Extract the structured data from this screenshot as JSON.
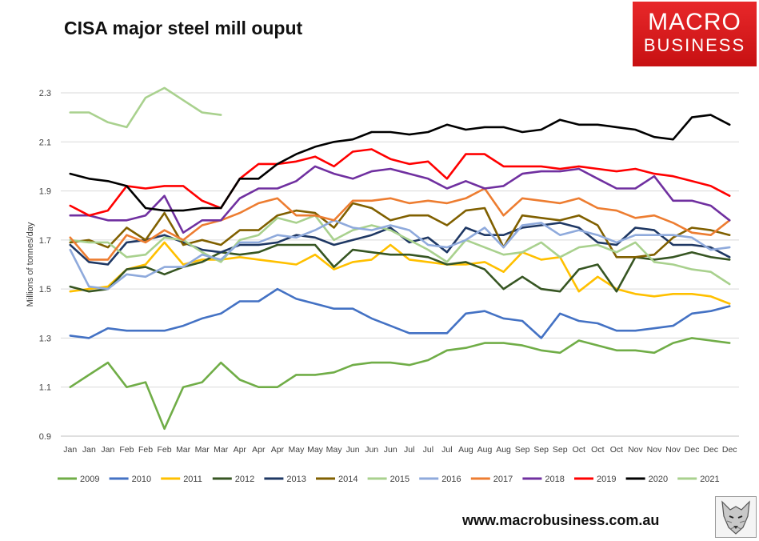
{
  "chart_data": {
    "type": "line",
    "title": "CISA major steel mill ouput",
    "xlabel": "",
    "ylabel": "Millions of tonnes/day",
    "ylim": [
      0.9,
      2.3
    ],
    "yticks": [
      0.9,
      1.1,
      1.3,
      1.5,
      1.7,
      1.9,
      2.1,
      2.3
    ],
    "grid": "horizontal",
    "legend": "bottom",
    "categories": [
      "Jan",
      "Jan",
      "Jan",
      "Feb",
      "Feb",
      "Feb",
      "Mar",
      "Mar",
      "Mar",
      "Apr",
      "Apr",
      "Apr",
      "May",
      "May",
      "May",
      "Jun",
      "Jun",
      "Jun",
      "Jul",
      "Jul",
      "Jul",
      "Aug",
      "Aug",
      "Aug",
      "Sep",
      "Sep",
      "Sep",
      "Oct",
      "Oct",
      "Oct",
      "Nov",
      "Nov",
      "Nov",
      "Dec",
      "Dec",
      "Dec"
    ],
    "series": [
      {
        "name": "2009",
        "color": "#70ad47",
        "values": [
          1.1,
          1.15,
          1.2,
          1.1,
          1.12,
          0.93,
          1.1,
          1.12,
          1.2,
          1.13,
          1.1,
          1.1,
          1.15,
          1.15,
          1.16,
          1.19,
          1.2,
          1.2,
          1.19,
          1.21,
          1.25,
          1.26,
          1.28,
          1.28,
          1.27,
          1.25,
          1.24,
          1.29,
          1.27,
          1.25,
          1.25,
          1.24,
          1.28,
          1.3,
          1.29,
          1.28
        ]
      },
      {
        "name": "2010",
        "color": "#4472c4",
        "values": [
          1.31,
          1.3,
          1.34,
          1.33,
          1.33,
          1.33,
          1.35,
          1.38,
          1.4,
          1.45,
          1.45,
          1.5,
          1.46,
          1.44,
          1.42,
          1.42,
          1.38,
          1.35,
          1.32,
          1.32,
          1.32,
          1.4,
          1.41,
          1.38,
          1.37,
          1.3,
          1.4,
          1.37,
          1.36,
          1.33,
          1.33,
          1.34,
          1.35,
          1.4,
          1.41,
          1.43
        ]
      },
      {
        "name": "2011",
        "color": "#ffc000",
        "values": [
          1.49,
          1.5,
          1.51,
          1.58,
          1.6,
          1.69,
          1.6,
          1.62,
          1.62,
          1.63,
          1.62,
          1.61,
          1.6,
          1.64,
          1.58,
          1.61,
          1.62,
          1.68,
          1.62,
          1.61,
          1.6,
          1.6,
          1.61,
          1.57,
          1.65,
          1.62,
          1.63,
          1.49,
          1.55,
          1.5,
          1.48,
          1.47,
          1.48,
          1.48,
          1.47,
          1.44
        ]
      },
      {
        "name": "2012",
        "color": "#375623",
        "values": [
          1.51,
          1.49,
          1.5,
          1.58,
          1.59,
          1.56,
          1.59,
          1.61,
          1.65,
          1.64,
          1.65,
          1.68,
          1.68,
          1.68,
          1.59,
          1.66,
          1.65,
          1.64,
          1.64,
          1.63,
          1.6,
          1.61,
          1.58,
          1.5,
          1.55,
          1.5,
          1.49,
          1.58,
          1.6,
          1.49,
          1.63,
          1.62,
          1.63,
          1.65,
          1.63,
          1.62
        ]
      },
      {
        "name": "2013",
        "color": "#1f3864",
        "values": [
          1.68,
          1.61,
          1.6,
          1.69,
          1.7,
          1.72,
          1.69,
          1.66,
          1.65,
          1.68,
          1.68,
          1.69,
          1.72,
          1.71,
          1.68,
          1.7,
          1.72,
          1.75,
          1.69,
          1.71,
          1.65,
          1.75,
          1.72,
          1.72,
          1.75,
          1.76,
          1.77,
          1.75,
          1.69,
          1.68,
          1.75,
          1.74,
          1.68,
          1.68,
          1.67,
          1.63
        ]
      },
      {
        "name": "2014",
        "color": "#806000",
        "values": [
          1.69,
          1.7,
          1.67,
          1.75,
          1.7,
          1.81,
          1.68,
          1.7,
          1.68,
          1.74,
          1.74,
          1.8,
          1.82,
          1.81,
          1.75,
          1.85,
          1.83,
          1.78,
          1.8,
          1.8,
          1.76,
          1.82,
          1.83,
          1.67,
          1.8,
          1.79,
          1.78,
          1.8,
          1.76,
          1.63,
          1.63,
          1.64,
          1.71,
          1.75,
          1.74,
          1.72
        ]
      },
      {
        "name": "2015",
        "color": "#a9d18e",
        "values": [
          1.7,
          1.69,
          1.69,
          1.63,
          1.64,
          1.71,
          1.7,
          1.65,
          1.61,
          1.7,
          1.72,
          1.79,
          1.77,
          1.8,
          1.7,
          1.74,
          1.76,
          1.74,
          1.7,
          1.66,
          1.61,
          1.7,
          1.67,
          1.64,
          1.65,
          1.69,
          1.63,
          1.67,
          1.68,
          1.65,
          1.69,
          1.61,
          1.6,
          1.58,
          1.57,
          1.52
        ]
      },
      {
        "name": "2016",
        "color": "#8faadc",
        "values": [
          1.66,
          1.51,
          1.5,
          1.56,
          1.55,
          1.59,
          1.59,
          1.64,
          1.62,
          1.69,
          1.69,
          1.72,
          1.71,
          1.74,
          1.78,
          1.75,
          1.74,
          1.76,
          1.74,
          1.68,
          1.67,
          1.7,
          1.75,
          1.67,
          1.76,
          1.77,
          1.72,
          1.74,
          1.72,
          1.69,
          1.72,
          1.72,
          1.72,
          1.71,
          1.66,
          1.67
        ]
      },
      {
        "name": "2017",
        "color": "#ed7d31",
        "values": [
          1.71,
          1.62,
          1.62,
          1.72,
          1.69,
          1.74,
          1.7,
          1.76,
          1.78,
          1.81,
          1.85,
          1.87,
          1.8,
          1.8,
          1.78,
          1.86,
          1.86,
          1.87,
          1.85,
          1.86,
          1.85,
          1.87,
          1.91,
          1.8,
          1.87,
          1.86,
          1.85,
          1.87,
          1.83,
          1.82,
          1.79,
          1.8,
          1.77,
          1.73,
          1.72,
          1.78
        ]
      },
      {
        "name": "2018",
        "color": "#7030a0",
        "values": [
          1.8,
          1.8,
          1.78,
          1.78,
          1.8,
          1.88,
          1.73,
          1.78,
          1.78,
          1.87,
          1.91,
          1.91,
          1.94,
          2.0,
          1.97,
          1.95,
          1.98,
          1.99,
          1.97,
          1.95,
          1.91,
          1.94,
          1.91,
          1.92,
          1.97,
          1.98,
          1.98,
          1.99,
          1.95,
          1.91,
          1.91,
          1.96,
          1.86,
          1.86,
          1.84,
          1.78
        ]
      },
      {
        "name": "2019",
        "color": "#ff0000",
        "values": [
          1.84,
          1.8,
          1.82,
          1.92,
          1.91,
          1.92,
          1.92,
          1.86,
          1.83,
          1.95,
          2.01,
          2.01,
          2.02,
          2.04,
          2.0,
          2.06,
          2.07,
          2.03,
          2.01,
          2.02,
          1.95,
          2.05,
          2.05,
          2.0,
          2.0,
          2.0,
          1.99,
          2.0,
          1.99,
          1.98,
          1.99,
          1.97,
          1.96,
          1.94,
          1.92,
          1.88
        ]
      },
      {
        "name": "2020",
        "color": "#000000",
        "values": [
          1.97,
          1.95,
          1.94,
          1.92,
          1.83,
          1.82,
          1.82,
          1.83,
          1.83,
          1.95,
          1.95,
          2.01,
          2.05,
          2.08,
          2.1,
          2.11,
          2.14,
          2.14,
          2.13,
          2.14,
          2.17,
          2.15,
          2.16,
          2.16,
          2.14,
          2.15,
          2.19,
          2.17,
          2.17,
          2.16,
          2.15,
          2.12,
          2.11,
          2.2,
          2.21,
          2.17
        ]
      },
      {
        "name": "2021",
        "color": "#a9d18e",
        "values": [
          2.22,
          2.22,
          2.18,
          2.16,
          2.28,
          2.32,
          2.27,
          2.22,
          2.21,
          null,
          null,
          null,
          null,
          null,
          null,
          null,
          null,
          null,
          null,
          null,
          null,
          null,
          null,
          null,
          null,
          null,
          null,
          null,
          null,
          null,
          null,
          null,
          null,
          null,
          null,
          null
        ]
      }
    ]
  },
  "brand": {
    "line1": "MACRO",
    "line2": "BUSINESS",
    "color": "#d91a1c"
  },
  "footer": {
    "website": "www.macrobusiness.com.au",
    "logo_icon": "wolf-icon"
  }
}
